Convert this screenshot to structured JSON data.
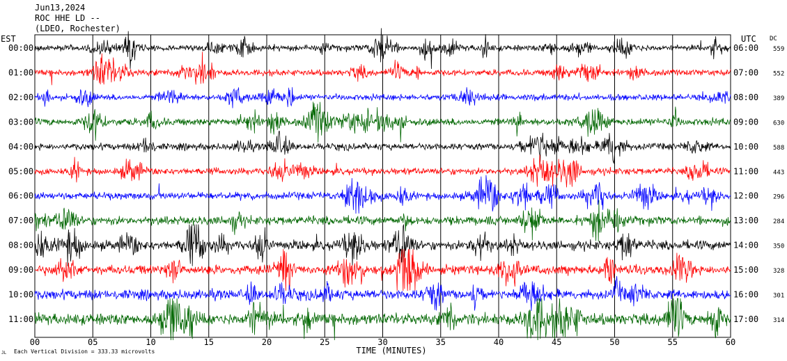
{
  "header": {
    "date": "Jun13,2024",
    "station": "ROC HHE LD --",
    "network": "(LDEO, Rochester)"
  },
  "chart_data": {
    "type": "line",
    "subtype": "helicorder",
    "left_axis_title": "EST",
    "right_axis_title": "UTC",
    "dc_label": "DC",
    "xlabel": "TIME (MINUTES)",
    "xlim": [
      0,
      60
    ],
    "x_ticks": [
      "00",
      "05",
      "10",
      "15",
      "20",
      "25",
      "30",
      "35",
      "40",
      "45",
      "50",
      "55",
      "60"
    ],
    "left_labels": [
      "00:00",
      "01:00",
      "02:00",
      "03:00",
      "04:00",
      "05:00",
      "06:00",
      "07:00",
      "08:00",
      "09:00",
      "10:00",
      "11:00"
    ],
    "right_labels": [
      "06:00",
      "07:00",
      "08:00",
      "09:00",
      "10:00",
      "11:00",
      "12:00",
      "13:00",
      "14:00",
      "15:00",
      "16:00",
      "17:00"
    ],
    "dc_offsets": [
      "559",
      "552",
      "389",
      "630",
      "588",
      "443",
      "296",
      "284",
      "350",
      "328",
      "301",
      "314"
    ],
    "trace_colors": [
      "#000000",
      "#ff0000",
      "#0000ff",
      "#006600"
    ],
    "footer_note": "Each Vertical Division =  333.33 microvolts",
    "logo_text": "JL",
    "grid": true,
    "trace_amplitude": [
      1.0,
      1.0,
      1.0,
      1.2,
      1.1,
      1.1,
      1.2,
      1.4,
      1.5,
      1.5,
      1.6,
      1.9
    ]
  }
}
